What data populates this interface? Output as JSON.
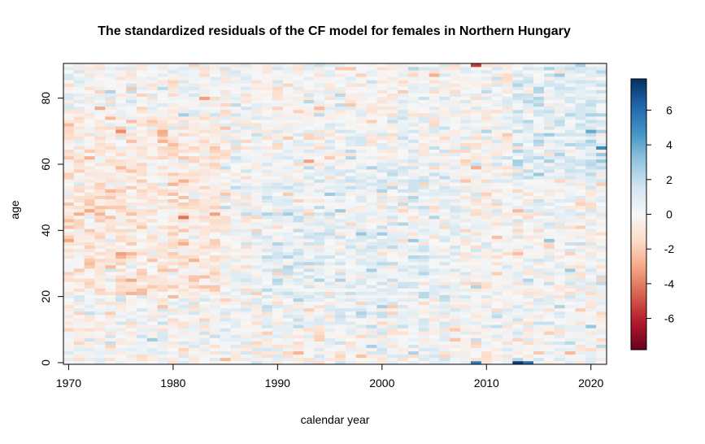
{
  "chart_data": {
    "type": "heatmap",
    "title": "The standardized residuals of the CF model for females in Northern Hungary",
    "xlabel": "calendar year",
    "ylabel": "age",
    "x_range": [
      1970,
      2021
    ],
    "y_range": [
      0,
      90
    ],
    "xticks": [
      1970,
      1980,
      1990,
      2000,
      2010,
      2020
    ],
    "yticks": [
      0,
      20,
      40,
      60,
      80
    ],
    "colorbar": {
      "ticks": [
        6,
        4,
        2,
        0,
        -2,
        -4,
        -6
      ],
      "min": -7.8,
      "max": 7.8,
      "palette": [
        "#67001F",
        "#B2182B",
        "#D6604D",
        "#F4A582",
        "#FDDBC7",
        "#F7F7F7",
        "#D1E5F0",
        "#92C5DE",
        "#4393C3",
        "#2166AC",
        "#053061"
      ]
    },
    "notable_cells": [
      {
        "year": 1971,
        "age": 45,
        "value": -2.8
      },
      {
        "year": 1972,
        "age": 46,
        "value": -3.0
      },
      {
        "year": 1983,
        "age": 80,
        "value": -3.2
      },
      {
        "year": 2009,
        "age": 0,
        "value": 5.5
      },
      {
        "year": 2013,
        "age": 0,
        "value": 7.5
      },
      {
        "year": 2014,
        "age": 0,
        "value": 6.0
      },
      {
        "year": 2021,
        "age": 65,
        "value": 5.0
      },
      {
        "year": 2020,
        "age": 70,
        "value": 4.0
      },
      {
        "year": 2009,
        "age": 90,
        "value": -5.5
      },
      {
        "year": 1974,
        "age": 52,
        "value": -2.6
      }
    ]
  }
}
